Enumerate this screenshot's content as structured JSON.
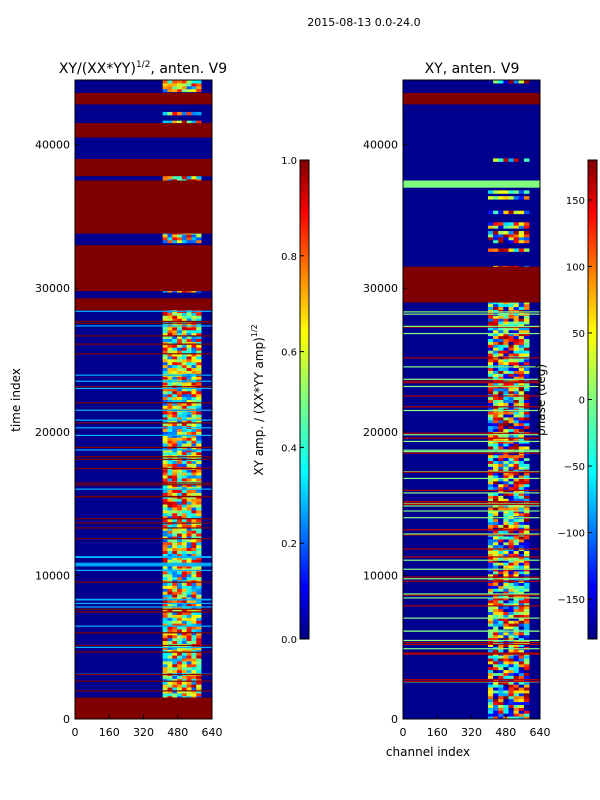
{
  "suptitle": "2015-08-13 0.0-24.0",
  "chart_data": [
    {
      "type": "heatmap",
      "title": "XY/(XX*YY)^{1/2}, anten. V9",
      "title_main": "XY/(XX*YY)",
      "title_sup": "1/2",
      "title_tail": ", anten. V9",
      "xlabel": "",
      "ylabel": "time index",
      "xlim": [
        0,
        640
      ],
      "ylim": [
        0,
        44500
      ],
      "xticks": [
        "0",
        "160",
        "320",
        "480",
        "640"
      ],
      "yticks": [
        "0",
        "10000",
        "20000",
        "30000",
        "40000"
      ],
      "colorbar": {
        "label": "XY amp. / (XX*YY amp)^{1/2}",
        "label_main": "XY amp. / (XX*YY amp)",
        "label_sup": "1/2",
        "range": [
          0.0,
          1.0
        ],
        "ticks": [
          "0.0",
          "0.2",
          "0.4",
          "0.6",
          "0.8",
          "1.0"
        ],
        "colormap": "jet"
      },
      "description_bands": [
        {
          "from": 0,
          "to": 1500,
          "value": 1.0
        },
        {
          "from": 28500,
          "to": 29300,
          "value": 1.0
        },
        {
          "from": 29800,
          "to": 33000,
          "value": 1.0
        },
        {
          "from": 33800,
          "to": 37500,
          "value": 1.0
        },
        {
          "from": 37800,
          "to": 39000,
          "value": 1.0
        },
        {
          "from": 40500,
          "to": 41500,
          "value": 1.0
        },
        {
          "from": 42800,
          "to": 43600,
          "value": 1.0
        }
      ]
    },
    {
      "type": "heatmap",
      "title": "XY, anten. V9",
      "xlabel": "channel index",
      "ylabel": "",
      "xlim": [
        0,
        640
      ],
      "ylim": [
        0,
        44500
      ],
      "xticks": [
        "0",
        "160",
        "320",
        "480",
        "640"
      ],
      "yticks": [
        "0",
        "10000",
        "20000",
        "30000",
        "40000"
      ],
      "colorbar": {
        "label": "phase (deg)",
        "range": [
          -180,
          180
        ],
        "ticks": [
          "150",
          "100",
          "50",
          "0",
          "−50",
          "−100",
          "−150"
        ],
        "colormap": "jet"
      },
      "description_bands": [
        {
          "from": 29000,
          "to": 31500,
          "value": 180
        },
        {
          "from": 42800,
          "to": 43600,
          "value": 180
        },
        {
          "from": 37000,
          "to": 37500,
          "value": 0
        }
      ]
    }
  ],
  "colors": {
    "jet_dark_blue": "#00008f",
    "jet_dark_red": "#800000",
    "axes": "#000000"
  }
}
